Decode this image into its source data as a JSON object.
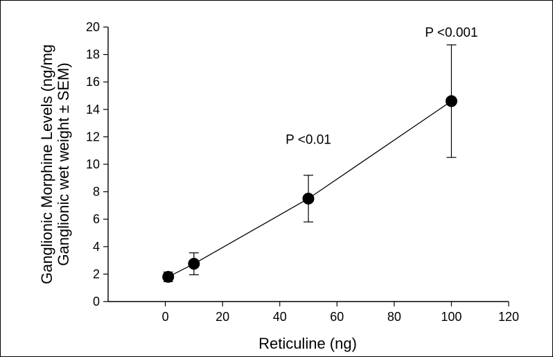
{
  "chart_data": {
    "type": "scatter",
    "x": [
      1,
      10,
      50,
      100
    ],
    "y": [
      1.8,
      2.75,
      7.5,
      14.6
    ],
    "error": [
      0.35,
      0.8,
      1.7,
      4.1
    ],
    "connected": true,
    "xlabel": "Reticuline (ng)",
    "ylabel_lines": [
      "Ganglionic Morphine Levels (ng/mg",
      "Ganglionic wet weight ± SEM)"
    ],
    "xlim": [
      -20,
      120
    ],
    "ylim": [
      0,
      20
    ],
    "xticks": [
      0,
      20,
      40,
      60,
      80,
      100,
      120
    ],
    "yticks": [
      0,
      2,
      4,
      6,
      8,
      10,
      12,
      14,
      16,
      18,
      20
    ],
    "annotations": [
      {
        "text": "P <0.01",
        "x": 50,
        "y": 11.5
      },
      {
        "text": "P <0.001",
        "x": 100,
        "y": 19.3
      }
    ],
    "grid": false,
    "marker_color": "#000000"
  }
}
